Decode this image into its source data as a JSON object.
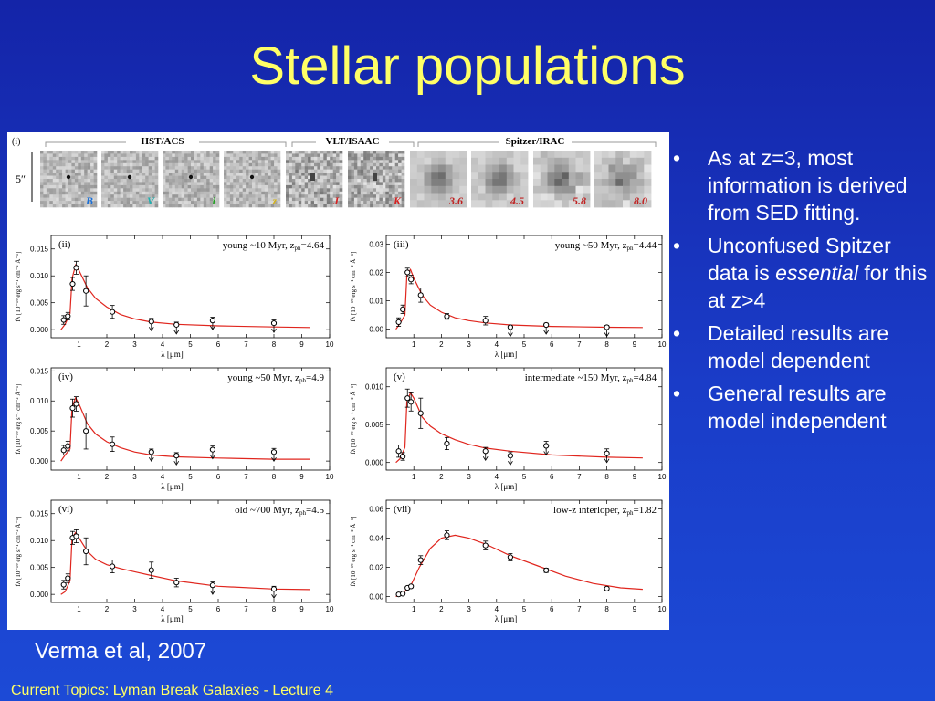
{
  "slide": {
    "title": "Stellar populations",
    "caption": "Verma et al, 2007",
    "footer": "Current Topics:  Lyman Break Galaxies - Lecture 4"
  },
  "bullets": [
    {
      "text": "As at z=3, most information is derived from SED fitting."
    },
    {
      "text_before": "Unconfused Spitzer data is ",
      "emphasis": "essential",
      "text_after": " for this at z>4"
    },
    {
      "text": "Detailed results are model dependent"
    },
    {
      "text": "General results are model independent"
    }
  ],
  "bullet_symbol": "•",
  "colors": {
    "title": "#ffff66",
    "text": "#ffffff",
    "background": "#1a3cc8",
    "model_line": "#e0261e"
  },
  "figure": {
    "panel_label": "(i)",
    "scale_label": "5″",
    "instruments": [
      "HST/ACS",
      "VLT/ISAAC",
      "Spitzer/IRAC"
    ],
    "bands": [
      {
        "label": "B",
        "color": "#1a6fd6"
      },
      {
        "label": "V",
        "color": "#1fb0b0"
      },
      {
        "label": "i",
        "color": "#22a022"
      },
      {
        "label": "z",
        "color": "#d6b41a"
      },
      {
        "label": "J",
        "color": "#d62020"
      },
      {
        "label": "K",
        "color": "#d62020"
      },
      {
        "label": "3.6",
        "color": "#c02020"
      },
      {
        "label": "4.5",
        "color": "#c02020"
      },
      {
        "label": "5.8",
        "color": "#c02020"
      },
      {
        "label": "8.0",
        "color": "#c02020"
      }
    ],
    "x_label": "λ [μm]",
    "y_label": "fλ [10⁻¹⁹ erg s⁻¹ cm⁻² Å⁻¹]"
  },
  "chart_data": [
    {
      "type": "scatter",
      "panel": "(ii)",
      "label": "young ~10 Myr, z",
      "zsub": "ph",
      "zval": "=4.64",
      "xlim": [
        0,
        10
      ],
      "ylim": [
        -0.0015,
        0.0175
      ],
      "xticks": [
        "1",
        "2",
        "3",
        "4",
        "5",
        "6",
        "7",
        "8",
        "9",
        "10"
      ],
      "yticks": [
        "0.000",
        "0.005",
        "0.010",
        "0.015"
      ],
      "points": [
        [
          0.45,
          0.0018,
          0.0008,
          0
        ],
        [
          0.6,
          0.0025,
          0.0007,
          0
        ],
        [
          0.77,
          0.0085,
          0.0012,
          0
        ],
        [
          0.9,
          0.0115,
          0.0012,
          0
        ],
        [
          1.25,
          0.0072,
          0.0028,
          0
        ],
        [
          2.2,
          0.0033,
          0.0012,
          0
        ],
        [
          3.6,
          0.0015,
          0.0006,
          1
        ],
        [
          4.5,
          0.0009,
          0.0005,
          1
        ],
        [
          5.8,
          0.0017,
          0.0006,
          1
        ],
        [
          8.0,
          0.0012,
          0.0006,
          1
        ]
      ],
      "model": [
        [
          0.35,
          0
        ],
        [
          0.5,
          0.001
        ],
        [
          0.68,
          0.003
        ],
        [
          0.75,
          0.0095
        ],
        [
          0.88,
          0.012
        ],
        [
          1.0,
          0.011
        ],
        [
          1.3,
          0.0078
        ],
        [
          1.6,
          0.0058
        ],
        [
          2.0,
          0.0042
        ],
        [
          2.5,
          0.0028
        ],
        [
          3.0,
          0.002
        ],
        [
          3.6,
          0.0014
        ],
        [
          4.5,
          0.001
        ],
        [
          6,
          0.0007
        ],
        [
          8,
          0.0005
        ],
        [
          9.3,
          0.0004
        ]
      ]
    },
    {
      "type": "scatter",
      "panel": "(iii)",
      "label": "young ~50 Myr, z",
      "zsub": "ph",
      "zval": "=4.44",
      "xlim": [
        0,
        10
      ],
      "ylim": [
        -0.003,
        0.033
      ],
      "xticks": [
        "1",
        "2",
        "3",
        "4",
        "5",
        "6",
        "7",
        "8",
        "9",
        "10"
      ],
      "yticks": [
        "0.00",
        "0.01",
        "0.02",
        "0.03"
      ],
      "points": [
        [
          0.45,
          0.0025,
          0.0015,
          0
        ],
        [
          0.6,
          0.007,
          0.0015,
          0
        ],
        [
          0.77,
          0.02,
          0.0015,
          0
        ],
        [
          0.9,
          0.0175,
          0.0015,
          0
        ],
        [
          1.25,
          0.012,
          0.0025,
          0
        ],
        [
          2.2,
          0.0045,
          0.001,
          0
        ],
        [
          3.6,
          0.003,
          0.0015,
          0
        ],
        [
          4.5,
          0.0007,
          0.0006,
          1
        ],
        [
          5.8,
          0.0015,
          0.0006,
          1
        ],
        [
          8.0,
          0.0007,
          0.0006,
          1
        ]
      ],
      "model": [
        [
          0.35,
          0
        ],
        [
          0.5,
          0.002
        ],
        [
          0.68,
          0.005
        ],
        [
          0.75,
          0.019
        ],
        [
          0.88,
          0.021
        ],
        [
          1.0,
          0.018
        ],
        [
          1.3,
          0.012
        ],
        [
          1.6,
          0.0085
        ],
        [
          2.0,
          0.006
        ],
        [
          2.5,
          0.004
        ],
        [
          3.0,
          0.003
        ],
        [
          3.6,
          0.0022
        ],
        [
          4.5,
          0.0015
        ],
        [
          6,
          0.001
        ],
        [
          8,
          0.0007
        ],
        [
          9.3,
          0.0006
        ]
      ]
    },
    {
      "type": "scatter",
      "panel": "(iv)",
      "label": "young ~50 Myr, z",
      "zsub": "ph",
      "zval": "=4.9",
      "xlim": [
        0,
        10
      ],
      "ylim": [
        -0.0015,
        0.0155
      ],
      "xticks": [
        "1",
        "2",
        "3",
        "4",
        "5",
        "6",
        "7",
        "8",
        "9",
        "10"
      ],
      "yticks": [
        "0.000",
        "0.005",
        "0.010",
        "0.015"
      ],
      "points": [
        [
          0.45,
          0.0018,
          0.0008,
          0
        ],
        [
          0.6,
          0.0025,
          0.0008,
          0
        ],
        [
          0.77,
          0.0088,
          0.0015,
          0
        ],
        [
          0.9,
          0.0095,
          0.0012,
          0
        ],
        [
          1.25,
          0.005,
          0.003,
          0
        ],
        [
          2.2,
          0.0028,
          0.0012,
          0
        ],
        [
          3.6,
          0.0015,
          0.0005,
          1
        ],
        [
          4.5,
          0.0009,
          0.0005,
          1
        ],
        [
          5.8,
          0.0019,
          0.0006,
          1
        ],
        [
          8.0,
          0.0015,
          0.0006,
          1
        ]
      ],
      "model": [
        [
          0.35,
          0
        ],
        [
          0.5,
          0.001
        ],
        [
          0.68,
          0.002
        ],
        [
          0.75,
          0.009
        ],
        [
          0.88,
          0.0105
        ],
        [
          1.0,
          0.0095
        ],
        [
          1.3,
          0.0062
        ],
        [
          1.6,
          0.0045
        ],
        [
          2.0,
          0.0032
        ],
        [
          2.5,
          0.0022
        ],
        [
          3.0,
          0.0015
        ],
        [
          3.6,
          0.001
        ],
        [
          4.5,
          0.0007
        ],
        [
          6,
          0.0005
        ],
        [
          8,
          0.0003
        ],
        [
          9.3,
          0.0003
        ]
      ]
    },
    {
      "type": "scatter",
      "panel": "(v)",
      "label": "intermediate ~150 Myr, z",
      "zsub": "ph",
      "zval": "=4.84",
      "xlim": [
        0,
        10
      ],
      "ylim": [
        -0.001,
        0.0125
      ],
      "xticks": [
        "1",
        "2",
        "3",
        "4",
        "5",
        "6",
        "7",
        "8",
        "9",
        "10"
      ],
      "yticks": [
        "0.000",
        "0.005",
        "0.010"
      ],
      "points": [
        [
          0.45,
          0.0015,
          0.0008,
          0
        ],
        [
          0.6,
          0.0008,
          0.0005,
          0
        ],
        [
          0.77,
          0.0085,
          0.0012,
          0
        ],
        [
          0.9,
          0.008,
          0.0012,
          0
        ],
        [
          1.25,
          0.0065,
          0.002,
          0
        ],
        [
          2.2,
          0.0025,
          0.0008,
          0
        ],
        [
          3.6,
          0.0015,
          0.0005,
          1
        ],
        [
          4.5,
          0.0009,
          0.0005,
          1
        ],
        [
          5.8,
          0.0022,
          0.0006,
          1
        ],
        [
          8.0,
          0.0012,
          0.0006,
          1
        ]
      ],
      "model": [
        [
          0.35,
          0
        ],
        [
          0.5,
          0.0005
        ],
        [
          0.68,
          0.002
        ],
        [
          0.75,
          0.008
        ],
        [
          0.88,
          0.0092
        ],
        [
          1.0,
          0.0085
        ],
        [
          1.3,
          0.006
        ],
        [
          1.6,
          0.0048
        ],
        [
          2.0,
          0.0038
        ],
        [
          2.5,
          0.003
        ],
        [
          3.0,
          0.0024
        ],
        [
          3.6,
          0.0019
        ],
        [
          4.5,
          0.0015
        ],
        [
          6,
          0.001
        ],
        [
          8,
          0.0007
        ],
        [
          9.3,
          0.0006
        ]
      ]
    },
    {
      "type": "scatter",
      "panel": "(vi)",
      "label": "old ~700 Myr, z",
      "zsub": "ph",
      "zval": "=4.5",
      "xlim": [
        0,
        10
      ],
      "ylim": [
        -0.0015,
        0.0175
      ],
      "xticks": [
        "1",
        "2",
        "3",
        "4",
        "5",
        "6",
        "7",
        "8",
        "9",
        "10"
      ],
      "yticks": [
        "0.000",
        "0.005",
        "0.010",
        "0.015"
      ],
      "points": [
        [
          0.45,
          0.0018,
          0.0008,
          0
        ],
        [
          0.6,
          0.003,
          0.0008,
          0
        ],
        [
          0.77,
          0.0105,
          0.0012,
          0
        ],
        [
          0.9,
          0.0108,
          0.0012,
          0
        ],
        [
          1.25,
          0.008,
          0.0025,
          0
        ],
        [
          2.2,
          0.0052,
          0.0012,
          0
        ],
        [
          3.6,
          0.0045,
          0.0015,
          0
        ],
        [
          4.5,
          0.0022,
          0.0008,
          0
        ],
        [
          5.8,
          0.0017,
          0.0006,
          1
        ],
        [
          8.0,
          0.001,
          0.0005,
          1
        ]
      ],
      "model": [
        [
          0.35,
          0
        ],
        [
          0.5,
          0.0005
        ],
        [
          0.68,
          0.0025
        ],
        [
          0.75,
          0.0105
        ],
        [
          0.88,
          0.0115
        ],
        [
          1.0,
          0.0105
        ],
        [
          1.3,
          0.008
        ],
        [
          1.6,
          0.0065
        ],
        [
          2.0,
          0.0055
        ],
        [
          2.5,
          0.0048
        ],
        [
          3.0,
          0.0042
        ],
        [
          3.6,
          0.0035
        ],
        [
          4.5,
          0.0025
        ],
        [
          6,
          0.0015
        ],
        [
          8,
          0.001
        ],
        [
          9.3,
          0.0009
        ]
      ]
    },
    {
      "type": "scatter",
      "panel": "(vii)",
      "label": "low-z interloper, z",
      "zsub": "ph",
      "zval": "=1.82",
      "xlim": [
        0,
        10
      ],
      "ylim": [
        -0.004,
        0.066
      ],
      "xticks": [
        "1",
        "2",
        "3",
        "4",
        "5",
        "6",
        "7",
        "8",
        "9",
        "10"
      ],
      "yticks": [
        "0.00",
        "0.02",
        "0.04",
        "0.06"
      ],
      "points": [
        [
          0.45,
          0.0015,
          0.001,
          0
        ],
        [
          0.6,
          0.002,
          0.001,
          0
        ],
        [
          0.77,
          0.006,
          0.001,
          0
        ],
        [
          0.9,
          0.007,
          0.001,
          0
        ],
        [
          1.25,
          0.025,
          0.003,
          0
        ],
        [
          2.2,
          0.042,
          0.003,
          0
        ],
        [
          3.6,
          0.035,
          0.003,
          0
        ],
        [
          4.5,
          0.027,
          0.0025,
          0
        ],
        [
          5.8,
          0.018,
          0.0015,
          0
        ],
        [
          8.0,
          0.0055,
          0.001,
          0
        ]
      ],
      "model": [
        [
          0.35,
          0
        ],
        [
          0.6,
          0.002
        ],
        [
          0.9,
          0.008
        ],
        [
          1.2,
          0.02
        ],
        [
          1.6,
          0.033
        ],
        [
          2.0,
          0.04
        ],
        [
          2.5,
          0.042
        ],
        [
          3.0,
          0.04
        ],
        [
          3.6,
          0.036
        ],
        [
          4.5,
          0.028
        ],
        [
          5.5,
          0.021
        ],
        [
          6.5,
          0.014
        ],
        [
          7.5,
          0.009
        ],
        [
          8.5,
          0.006
        ],
        [
          9.3,
          0.005
        ]
      ]
    }
  ]
}
